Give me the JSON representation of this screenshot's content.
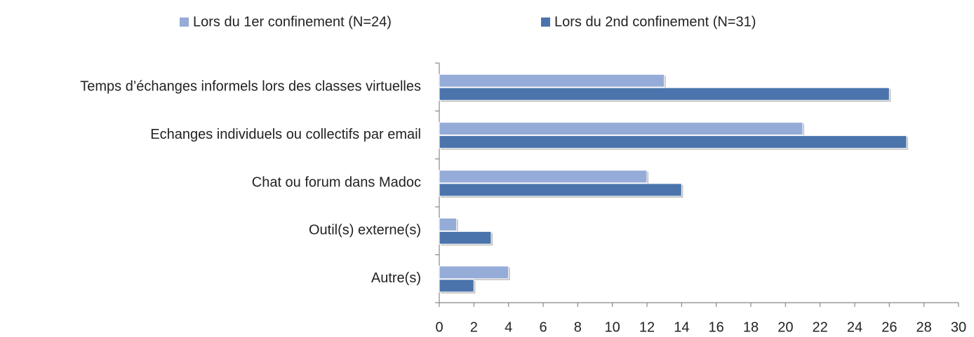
{
  "chart_data": {
    "type": "hbar",
    "categories": [
      "Temps d’échanges informels lors des classes virtuelles",
      "Echanges individuels ou collectifs par email",
      "Chat ou forum dans Madoc",
      "Outil(s) externe(s)",
      "Autre(s)"
    ],
    "series": [
      {
        "name": "Lors du 1er confinement (N=24)",
        "color": "#95abd8",
        "values": [
          13,
          21,
          12,
          1,
          4
        ]
      },
      {
        "name": "Lors du 2nd confinement (N=31)",
        "color": "#4a74ab",
        "values": [
          26,
          27,
          14,
          3,
          2
        ]
      }
    ],
    "xlim": [
      0,
      30
    ],
    "xticks": [
      0,
      2,
      4,
      6,
      8,
      10,
      12,
      14,
      16,
      18,
      20,
      22,
      24,
      26,
      28,
      30
    ],
    "grid": false,
    "legend": "top"
  }
}
